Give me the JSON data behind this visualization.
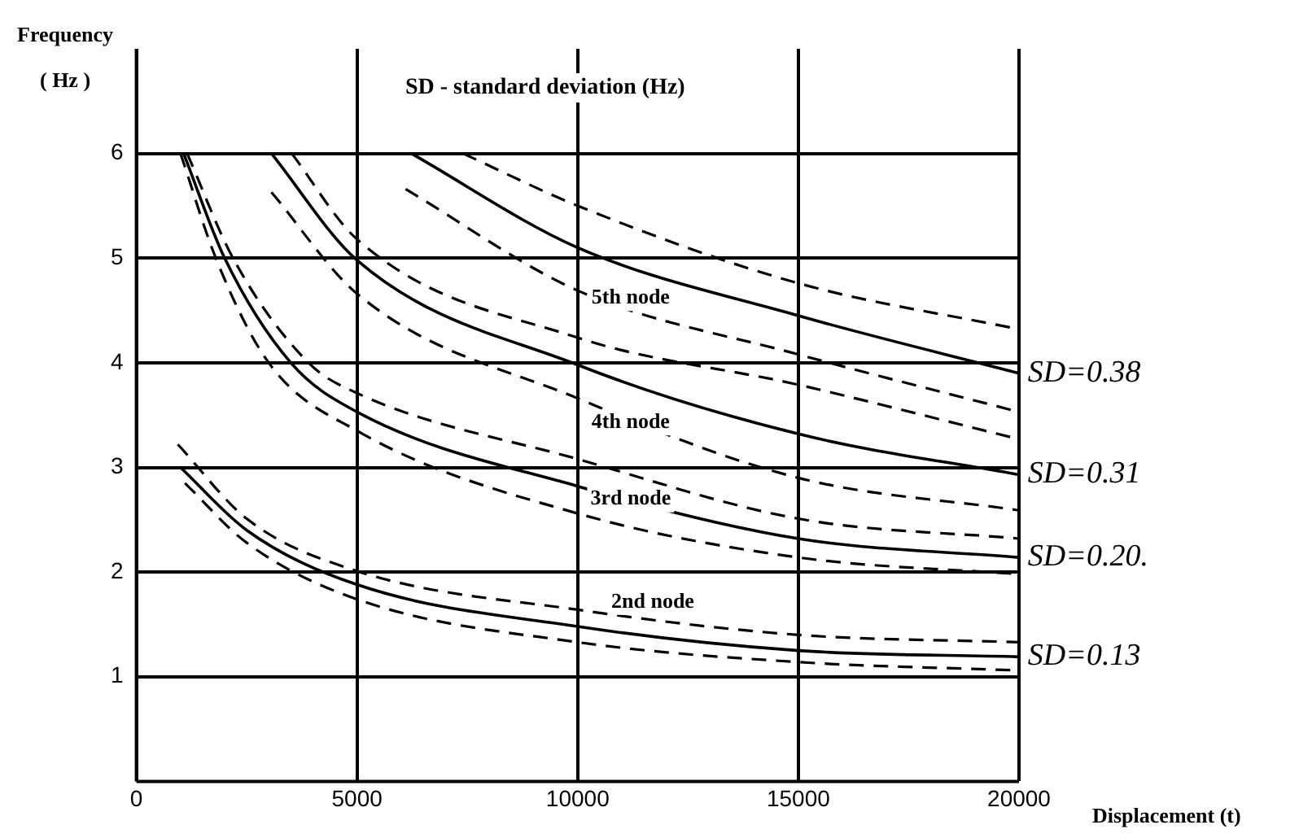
{
  "chart_data": {
    "type": "line",
    "title": "SD - standard deviation (Hz)",
    "xlabel": "Displacement (t)",
    "ylabel": "Frequency\n( Hz )",
    "xlim": [
      0,
      20000
    ],
    "ylim": [
      0,
      7
    ],
    "xticks": [
      0,
      5000,
      10000,
      15000,
      20000
    ],
    "yticks": [
      1,
      2,
      3,
      4,
      5,
      6
    ],
    "grid": true,
    "legend": false,
    "marker": "none",
    "series": [
      {
        "color": "#000000",
        "line_style": "dashed",
        "x": [
          940,
          2500,
          5000,
          10000,
          15000,
          20000
        ],
        "values": [
          3.22,
          2.51,
          2.01,
          1.64,
          1.4,
          1.33
        ]
      },
      {
        "color": "#000000",
        "line_style": "solid",
        "x": [
          1000,
          2500,
          5000,
          10000,
          15000,
          20000
        ],
        "values": [
          3.0,
          2.4,
          1.88,
          1.48,
          1.25,
          1.19
        ]
      },
      {
        "color": "#000000",
        "line_style": "dashed",
        "x": [
          1100,
          2500,
          5000,
          10000,
          15000,
          20000
        ],
        "values": [
          2.85,
          2.28,
          1.74,
          1.33,
          1.14,
          1.06
        ]
      },
      {
        "color": "#000000",
        "line_style": "dashed",
        "x": [
          1150,
          2190,
          3900,
          5000,
          10000,
          15000,
          20000
        ],
        "values": [
          6,
          5,
          4,
          3.71,
          3.08,
          2.51,
          2.32
        ]
      },
      {
        "color": "#000000",
        "line_style": "solid",
        "x": [
          1070,
          2000,
          3500,
          5000,
          10000,
          15000,
          20000
        ],
        "values": [
          6,
          5,
          4,
          3.53,
          2.82,
          2.32,
          2.14
        ]
      },
      {
        "color": "#000000",
        "line_style": "dashed",
        "x": [
          1000,
          1800,
          3000,
          5000,
          10000,
          15000,
          20000
        ],
        "values": [
          6,
          5,
          4,
          3.35,
          2.56,
          2.14,
          1.98
        ]
      },
      {
        "color": "#000000",
        "line_style": "dashed",
        "x": [
          3520,
          5000,
          10000,
          15000,
          20000
        ],
        "values": [
          6,
          5.18,
          4.24,
          3.79,
          3.27
        ]
      },
      {
        "color": "#000000",
        "line_style": "solid",
        "x": [
          3060,
          5000,
          10000,
          15000,
          20000
        ],
        "values": [
          6,
          4.98,
          3.98,
          3.32,
          2.93
        ]
      },
      {
        "color": "#000000",
        "line_style": "dashed",
        "x": [
          3060,
          5000,
          10000,
          15000,
          20000
        ],
        "values": [
          5.63,
          4.66,
          3.66,
          2.9,
          2.59
        ]
      },
      {
        "color": "#000000",
        "line_style": "dashed",
        "x": [
          7400,
          10000,
          15000,
          20000
        ],
        "values": [
          6,
          5.5,
          4.76,
          4.32
        ]
      },
      {
        "color": "#000000",
        "line_style": "solid",
        "x": [
          6230,
          10000,
          15000,
          20000
        ],
        "values": [
          6,
          5.1,
          4.45,
          3.9
        ]
      },
      {
        "color": "#000000",
        "line_style": "dashed",
        "x": [
          6100,
          10000,
          15000,
          20000
        ],
        "values": [
          5.66,
          4.69,
          4.08,
          3.53
        ]
      }
    ],
    "annotations": [
      "5th node",
      "4th node",
      "3rd node",
      "2nd node",
      "SD=0.38",
      "SD=0.31",
      "SD=0.20.",
      "SD=0.13"
    ]
  }
}
